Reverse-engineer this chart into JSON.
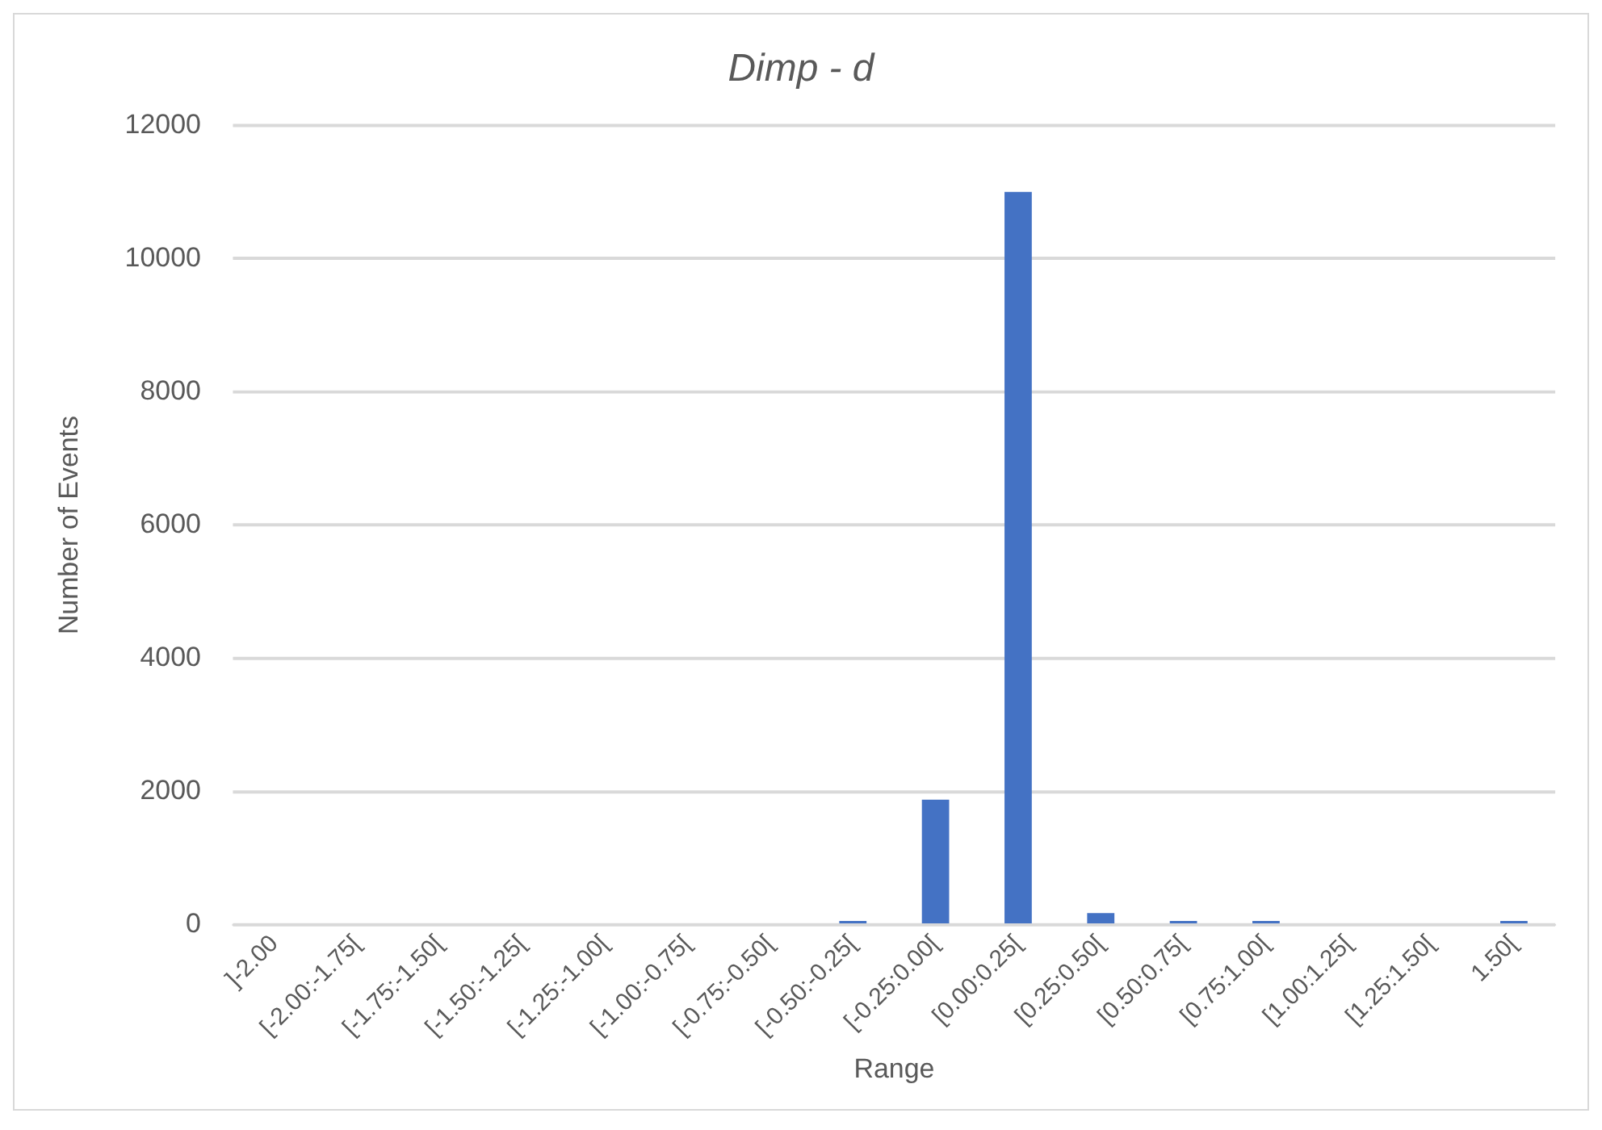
{
  "chart_data": {
    "type": "bar",
    "title": "Dimp - d",
    "xlabel": "Range",
    "ylabel": "Number of Events",
    "categories": [
      "]-2.00",
      "[-2.00:-1.75[",
      "[-1.75:-1.50[",
      "[-1.50:-1.25[",
      "[-1.25:-1.00[",
      "[-1.00:-0.75[",
      "[-0.75:-0.50[",
      "[-0.50:-0.25[",
      "[-0.25:0.00[",
      "[0.00:0.25[",
      "[0.25:0.50[",
      "[0.50:0.75[",
      "[0.75:1.00[",
      "[1.00:1.25[",
      "[1.25:1.50[",
      "1.50["
    ],
    "values": [
      0,
      0,
      0,
      0,
      0,
      0,
      0,
      60,
      1880,
      11000,
      180,
      60,
      60,
      0,
      0,
      60
    ],
    "color": "#4472c4",
    "ylim": [
      0,
      12000
    ],
    "yticks": [
      0,
      2000,
      4000,
      6000,
      8000,
      10000,
      12000
    ],
    "grid": "y",
    "legend": false
  }
}
